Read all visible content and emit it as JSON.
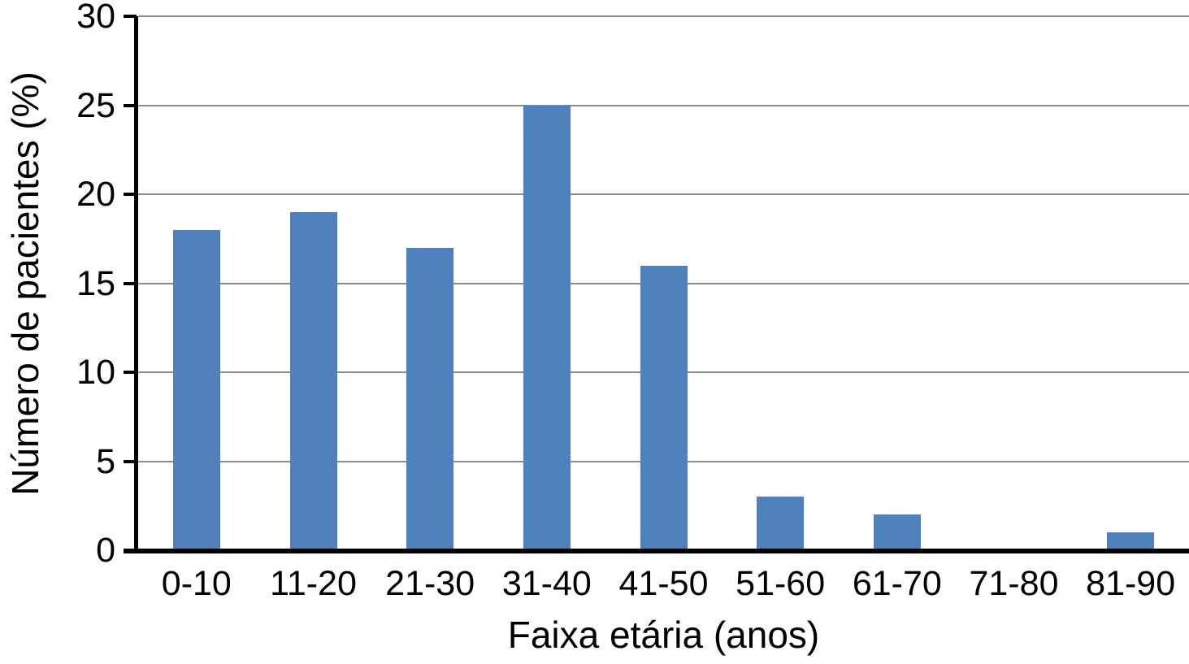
{
  "chart_data": {
    "type": "bar",
    "title": "",
    "xlabel": "Faixa etária (anos)",
    "ylabel": "Número de pacientes (%)",
    "categories": [
      "0-10",
      "11-20",
      "21-30",
      "31-40",
      "41-50",
      "51-60",
      "61-70",
      "71-80",
      "81-90"
    ],
    "values": [
      18,
      19,
      17,
      25,
      16,
      3,
      2,
      0,
      1
    ],
    "ylim": [
      0,
      30
    ],
    "ytick_step": 5,
    "yticks": [
      0,
      5,
      10,
      15,
      20,
      25,
      30
    ],
    "grid": true,
    "legend_position": "none",
    "colors": {
      "bar": "#4F81BD",
      "gridline": "#8C8C8C",
      "axis": "#000000",
      "text": "#000000",
      "background": "#FFFFFF"
    }
  }
}
